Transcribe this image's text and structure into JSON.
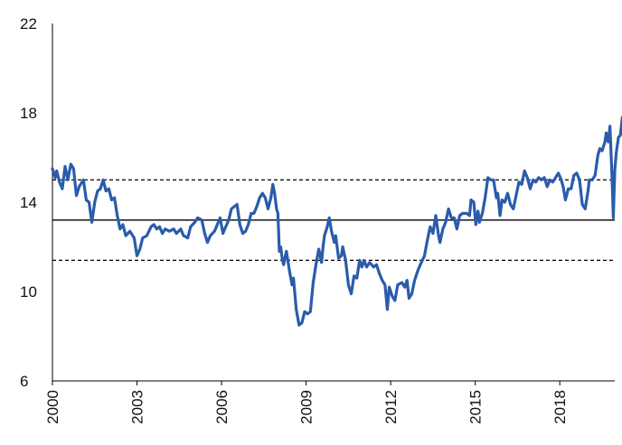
{
  "colors": {
    "series": "#2a5caa",
    "axis": "#000000",
    "reference": "#000000"
  },
  "chart_data": {
    "type": "line",
    "title": "",
    "xlabel": "",
    "ylabel": "",
    "ylim": [
      6,
      22
    ],
    "xlim": [
      2000.0,
      2019.95
    ],
    "yticks": [
      6,
      10,
      14,
      18,
      22
    ],
    "xticks": [
      {
        "value": 2000,
        "label": "2000"
      },
      {
        "value": 2003,
        "label": "2003"
      },
      {
        "value": 2006,
        "label": "2006"
      },
      {
        "value": 2009,
        "label": "2009"
      },
      {
        "value": 2012,
        "label": "2012"
      },
      {
        "value": 2015,
        "label": "2015"
      },
      {
        "value": 2018,
        "label": "2018"
      }
    ],
    "reference_lines": [
      {
        "y": 13.2,
        "style": "solid"
      },
      {
        "y": 15.0,
        "style": "dashed"
      },
      {
        "y": 11.4,
        "style": "dashed"
      }
    ],
    "grid": false,
    "series": [
      {
        "points": [
          [
            2000.0,
            15.5
          ],
          [
            2000.1,
            15.1
          ],
          [
            2000.15,
            15.4
          ],
          [
            2000.25,
            14.9
          ],
          [
            2000.35,
            14.6
          ],
          [
            2000.45,
            15.6
          ],
          [
            2000.55,
            15.0
          ],
          [
            2000.65,
            15.7
          ],
          [
            2000.75,
            15.5
          ],
          [
            2000.85,
            14.3
          ],
          [
            2000.95,
            14.7
          ],
          [
            2001.1,
            15.0
          ],
          [
            2001.2,
            14.1
          ],
          [
            2001.3,
            14.0
          ],
          [
            2001.4,
            13.1
          ],
          [
            2001.5,
            14.0
          ],
          [
            2001.6,
            14.5
          ],
          [
            2001.7,
            14.6
          ],
          [
            2001.8,
            15.0
          ],
          [
            2001.9,
            14.5
          ],
          [
            2002.0,
            14.6
          ],
          [
            2002.1,
            14.1
          ],
          [
            2002.2,
            14.2
          ],
          [
            2002.3,
            13.4
          ],
          [
            2002.4,
            12.8
          ],
          [
            2002.5,
            13.0
          ],
          [
            2002.6,
            12.5
          ],
          [
            2002.75,
            12.7
          ],
          [
            2002.9,
            12.4
          ],
          [
            2003.0,
            11.6
          ],
          [
            2003.1,
            11.9
          ],
          [
            2003.2,
            12.4
          ],
          [
            2003.35,
            12.5
          ],
          [
            2003.5,
            12.9
          ],
          [
            2003.6,
            13.0
          ],
          [
            2003.7,
            12.8
          ],
          [
            2003.8,
            12.9
          ],
          [
            2003.9,
            12.6
          ],
          [
            2004.0,
            12.8
          ],
          [
            2004.15,
            12.7
          ],
          [
            2004.3,
            12.8
          ],
          [
            2004.4,
            12.6
          ],
          [
            2004.55,
            12.8
          ],
          [
            2004.65,
            12.5
          ],
          [
            2004.8,
            12.4
          ],
          [
            2004.9,
            12.9
          ],
          [
            2005.05,
            13.1
          ],
          [
            2005.15,
            13.3
          ],
          [
            2005.3,
            13.2
          ],
          [
            2005.4,
            12.6
          ],
          [
            2005.5,
            12.2
          ],
          [
            2005.6,
            12.5
          ],
          [
            2005.75,
            12.7
          ],
          [
            2005.85,
            13.0
          ],
          [
            2005.95,
            13.3
          ],
          [
            2006.05,
            12.6
          ],
          [
            2006.15,
            12.9
          ],
          [
            2006.25,
            13.2
          ],
          [
            2006.35,
            13.7
          ],
          [
            2006.45,
            13.8
          ],
          [
            2006.55,
            13.9
          ],
          [
            2006.65,
            13.0
          ],
          [
            2006.75,
            12.6
          ],
          [
            2006.85,
            12.7
          ],
          [
            2006.95,
            13.0
          ],
          [
            2007.05,
            13.5
          ],
          [
            2007.15,
            13.5
          ],
          [
            2007.25,
            13.8
          ],
          [
            2007.35,
            14.2
          ],
          [
            2007.45,
            14.4
          ],
          [
            2007.55,
            14.2
          ],
          [
            2007.65,
            13.7
          ],
          [
            2007.75,
            14.2
          ],
          [
            2007.82,
            14.8
          ],
          [
            2007.88,
            14.4
          ],
          [
            2007.95,
            13.7
          ],
          [
            2008.0,
            13.5
          ],
          [
            2008.05,
            11.8
          ],
          [
            2008.1,
            12.0
          ],
          [
            2008.15,
            11.5
          ],
          [
            2008.2,
            11.2
          ],
          [
            2008.3,
            11.8
          ],
          [
            2008.4,
            11.0
          ],
          [
            2008.5,
            10.3
          ],
          [
            2008.55,
            10.6
          ],
          [
            2008.65,
            9.2
          ],
          [
            2008.75,
            8.5
          ],
          [
            2008.85,
            8.6
          ],
          [
            2008.95,
            9.1
          ],
          [
            2009.05,
            9.0
          ],
          [
            2009.15,
            9.1
          ],
          [
            2009.25,
            10.4
          ],
          [
            2009.35,
            11.2
          ],
          [
            2009.45,
            11.9
          ],
          [
            2009.55,
            11.3
          ],
          [
            2009.6,
            12.0
          ],
          [
            2009.65,
            12.5
          ],
          [
            2009.75,
            12.9
          ],
          [
            2009.82,
            13.3
          ],
          [
            2009.9,
            12.7
          ],
          [
            2010.0,
            12.2
          ],
          [
            2010.05,
            12.5
          ],
          [
            2010.15,
            11.5
          ],
          [
            2010.25,
            11.6
          ],
          [
            2010.3,
            12.0
          ],
          [
            2010.4,
            11.4
          ],
          [
            2010.5,
            10.3
          ],
          [
            2010.6,
            9.9
          ],
          [
            2010.7,
            10.7
          ],
          [
            2010.8,
            10.6
          ],
          [
            2010.9,
            11.4
          ],
          [
            2010.98,
            11.1
          ],
          [
            2011.05,
            11.4
          ],
          [
            2011.15,
            11.1
          ],
          [
            2011.25,
            11.3
          ],
          [
            2011.4,
            11.1
          ],
          [
            2011.5,
            11.2
          ],
          [
            2011.6,
            10.8
          ],
          [
            2011.7,
            10.5
          ],
          [
            2011.8,
            10.3
          ],
          [
            2011.88,
            9.2
          ],
          [
            2011.95,
            10.2
          ],
          [
            2012.05,
            9.8
          ],
          [
            2012.15,
            9.6
          ],
          [
            2012.25,
            10.3
          ],
          [
            2012.4,
            10.4
          ],
          [
            2012.5,
            10.2
          ],
          [
            2012.58,
            10.5
          ],
          [
            2012.65,
            9.7
          ],
          [
            2012.75,
            9.9
          ],
          [
            2012.85,
            10.5
          ],
          [
            2012.95,
            10.9
          ],
          [
            2013.05,
            11.2
          ],
          [
            2013.2,
            11.6
          ],
          [
            2013.3,
            12.3
          ],
          [
            2013.4,
            12.9
          ],
          [
            2013.5,
            12.6
          ],
          [
            2013.6,
            13.4
          ],
          [
            2013.7,
            12.5
          ],
          [
            2013.75,
            12.2
          ],
          [
            2013.85,
            12.8
          ],
          [
            2013.95,
            13.1
          ],
          [
            2014.05,
            13.7
          ],
          [
            2014.15,
            13.3
          ],
          [
            2014.25,
            13.3
          ],
          [
            2014.35,
            12.8
          ],
          [
            2014.45,
            13.4
          ],
          [
            2014.55,
            13.5
          ],
          [
            2014.7,
            13.5
          ],
          [
            2014.8,
            13.4
          ],
          [
            2014.85,
            14.1
          ],
          [
            2014.95,
            14.0
          ],
          [
            2015.02,
            13.0
          ],
          [
            2015.1,
            13.6
          ],
          [
            2015.15,
            13.1
          ],
          [
            2015.25,
            13.5
          ],
          [
            2015.35,
            14.2
          ],
          [
            2015.45,
            15.1
          ],
          [
            2015.55,
            15.0
          ],
          [
            2015.65,
            15.0
          ],
          [
            2015.75,
            14.2
          ],
          [
            2015.8,
            14.4
          ],
          [
            2015.88,
            13.4
          ],
          [
            2015.95,
            14.1
          ],
          [
            2016.05,
            14.0
          ],
          [
            2016.15,
            14.4
          ],
          [
            2016.25,
            13.9
          ],
          [
            2016.35,
            13.7
          ],
          [
            2016.45,
            14.3
          ],
          [
            2016.55,
            14.9
          ],
          [
            2016.65,
            14.8
          ],
          [
            2016.75,
            15.4
          ],
          [
            2016.85,
            15.1
          ],
          [
            2016.95,
            14.6
          ],
          [
            2017.05,
            15.0
          ],
          [
            2017.15,
            14.9
          ],
          [
            2017.25,
            15.1
          ],
          [
            2017.35,
            15.0
          ],
          [
            2017.45,
            15.1
          ],
          [
            2017.55,
            14.7
          ],
          [
            2017.65,
            15.0
          ],
          [
            2017.75,
            14.9
          ],
          [
            2017.85,
            15.1
          ],
          [
            2017.95,
            15.3
          ],
          [
            2018.05,
            15.0
          ],
          [
            2018.12,
            14.7
          ],
          [
            2018.2,
            14.1
          ],
          [
            2018.3,
            14.6
          ],
          [
            2018.4,
            14.6
          ],
          [
            2018.5,
            15.2
          ],
          [
            2018.6,
            15.3
          ],
          [
            2018.7,
            15.0
          ],
          [
            2018.8,
            13.9
          ],
          [
            2018.9,
            13.7
          ],
          [
            2019.0,
            14.5
          ],
          [
            2019.05,
            15.0
          ],
          [
            2019.15,
            15.0
          ],
          [
            2019.25,
            15.2
          ],
          [
            2019.35,
            16.1
          ],
          [
            2019.42,
            16.4
          ],
          [
            2019.5,
            16.3
          ],
          [
            2019.6,
            16.7
          ],
          [
            2019.65,
            17.1
          ],
          [
            2019.72,
            16.7
          ],
          [
            2019.78,
            17.4
          ],
          [
            2019.85,
            15.2
          ],
          [
            2019.9,
            13.3
          ],
          [
            2019.95,
            15.4
          ],
          [
            2020.0,
            16.2
          ],
          [
            2020.08,
            16.9
          ],
          [
            2020.15,
            17.0
          ],
          [
            2020.22,
            17.8
          ]
        ]
      }
    ]
  }
}
